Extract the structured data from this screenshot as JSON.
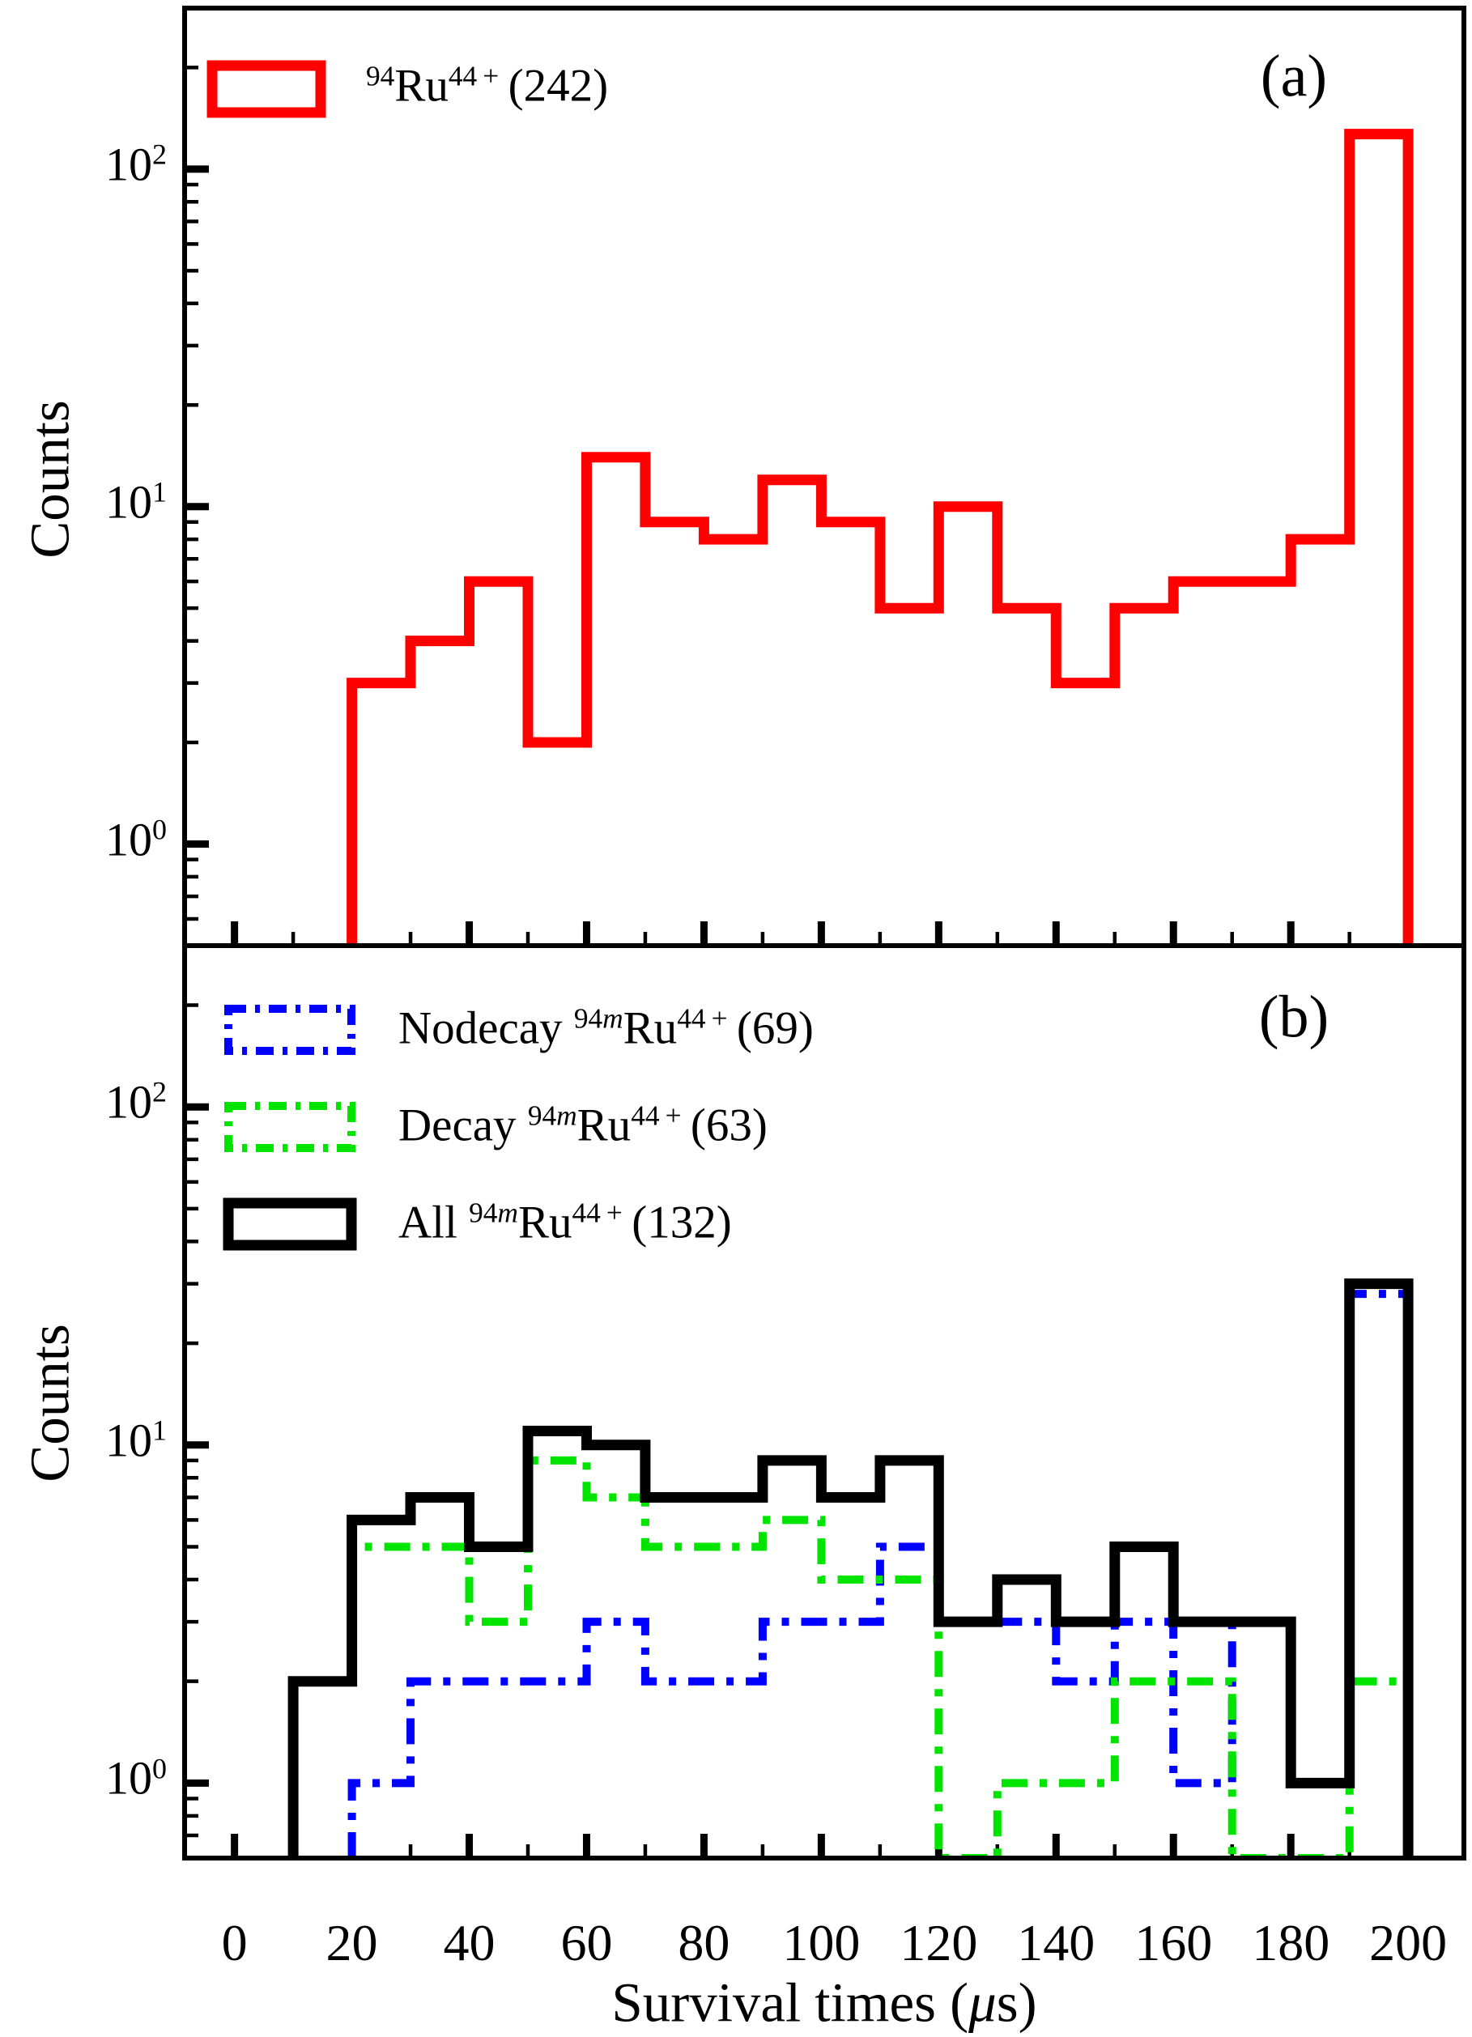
{
  "colors": {
    "foreground": "#000000",
    "background": "#ffffff",
    "red": "#ff0000",
    "blue": "#0000ff",
    "green": "#00e400",
    "black": "#000000"
  },
  "xlabel_parts": [
    {
      "text": "Survival times ("
    },
    {
      "text": "μ",
      "italic": true
    },
    {
      "text": "s)"
    }
  ],
  "panel_a": {
    "tag": "(a)",
    "ylabel": "Counts",
    "legend": [
      {
        "series": "ru94",
        "parts": [
          {
            "text": "94",
            "sup": true
          },
          {
            "text": "Ru"
          },
          {
            "text": "44 +",
            "sup": true
          },
          {
            "text": " (242)"
          }
        ]
      }
    ]
  },
  "panel_b": {
    "tag": "(b)",
    "ylabel": "Counts",
    "legend": [
      {
        "series": "nodecay",
        "parts": [
          {
            "text": "Nodecay "
          },
          {
            "text": "94",
            "sup": true
          },
          {
            "text": "m",
            "sup": true,
            "italic": true
          },
          {
            "text": "Ru"
          },
          {
            "text": "44 +",
            "sup": true
          },
          {
            "text": " (69)"
          }
        ]
      },
      {
        "series": "decay",
        "parts": [
          {
            "text": "Decay "
          },
          {
            "text": "94",
            "sup": true
          },
          {
            "text": "m",
            "sup": true,
            "italic": true
          },
          {
            "text": "Ru"
          },
          {
            "text": "44 +",
            "sup": true
          },
          {
            "text": " (63)"
          }
        ]
      },
      {
        "series": "all",
        "parts": [
          {
            "text": "All "
          },
          {
            "text": "94",
            "sup": true
          },
          {
            "text": "m",
            "sup": true,
            "italic": true
          },
          {
            "text": "Ru"
          },
          {
            "text": "44 +",
            "sup": true
          },
          {
            "text": " (132)"
          }
        ]
      }
    ]
  },
  "chart_data": {
    "type": "bar",
    "subtype": "step-histograms, two stacked panels, shared x axis",
    "xlabel": "Survival times (us)",
    "ylabel": "Counts",
    "x_axis": {
      "range_us": [
        -8.5,
        209.5
      ],
      "major_ticks": [
        0,
        20,
        40,
        60,
        80,
        100,
        120,
        140,
        160,
        180,
        200
      ],
      "minor_ticks": [
        10,
        30,
        50,
        70,
        90,
        110,
        130,
        150,
        170,
        190
      ]
    },
    "y_axis": {
      "scale": "log",
      "major_ticks": [
        1,
        10,
        100
      ],
      "tick_exponents": [
        "0",
        "1",
        "2"
      ],
      "panel_a_range": [
        0.5,
        300
      ],
      "panel_b_range": [
        0.6,
        300
      ]
    },
    "grid": false,
    "legend_position": "upper left",
    "bin_width_us": 10,
    "series": [
      {
        "id": "ru94",
        "panel": "a",
        "name": "94Ru44+ (242)",
        "total": 242,
        "color": "#ff0000",
        "style": "solid",
        "line_width": 13,
        "bin_start_us": 20,
        "counts": [
          3,
          4,
          6,
          2,
          14,
          9,
          8,
          12,
          9,
          5,
          10,
          5,
          3,
          5,
          6,
          6,
          8,
          127
        ]
      },
      {
        "id": "nodecay",
        "panel": "b",
        "name": "Nodecay 94mRu44+ (69)",
        "total": 69,
        "color": "#0000ff",
        "style": "dashdot",
        "line_width": 10,
        "bin_start_us": 20,
        "counts": [
          1,
          2,
          2,
          2,
          3,
          2,
          2,
          3,
          3,
          5,
          3,
          3,
          2,
          3,
          1,
          3,
          1,
          28
        ]
      },
      {
        "id": "decay",
        "panel": "b",
        "name": "Decay 94mRu44+ (63)",
        "total": 63,
        "color": "#00e400",
        "style": "dashdot",
        "line_width": 10,
        "bin_start_us": 10,
        "counts": [
          2,
          5,
          5,
          3,
          9,
          7,
          5,
          5,
          6,
          4,
          4,
          0,
          1,
          1,
          2,
          2,
          0,
          0,
          2
        ]
      },
      {
        "id": "all",
        "panel": "b",
        "name": "All 94mRu44+ (132)",
        "total": 132,
        "color": "#000000",
        "style": "solid",
        "line_width": 13,
        "bin_start_us": 10,
        "counts": [
          2,
          6,
          7,
          5,
          11,
          10,
          7,
          7,
          9,
          7,
          9,
          3,
          4,
          3,
          5,
          3,
          3,
          1,
          30
        ]
      }
    ]
  }
}
